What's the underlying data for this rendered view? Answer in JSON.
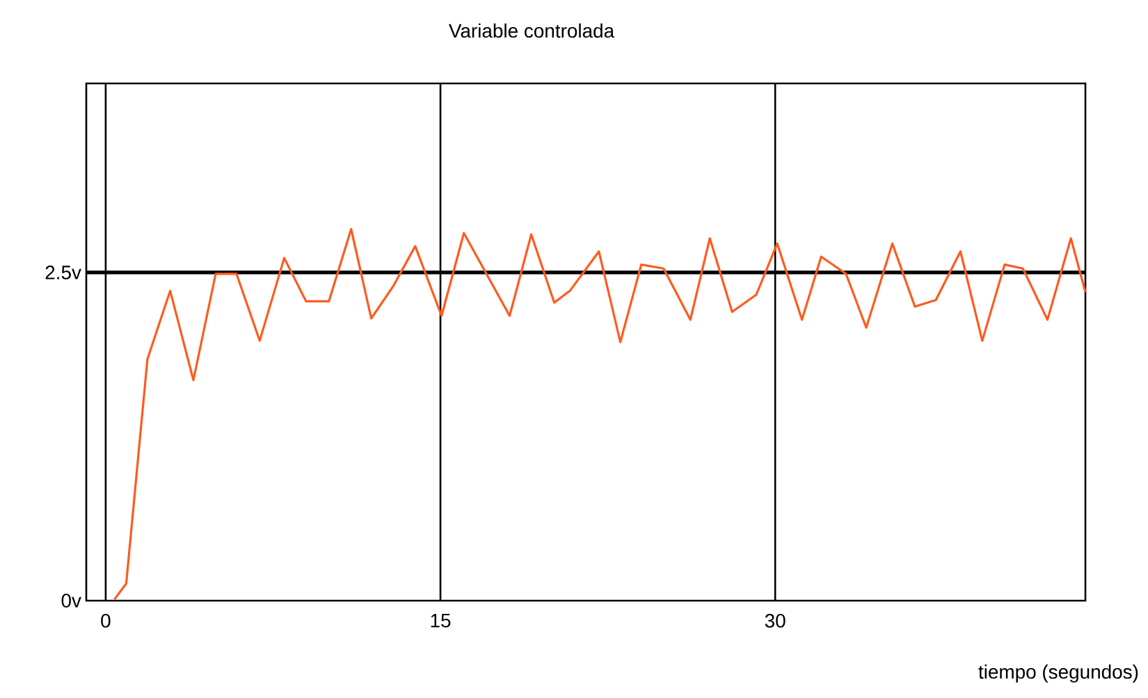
{
  "chart_data": {
    "type": "line",
    "title": "Variable controlada",
    "xlabel": "tiempo (segundos)",
    "x": [
      0.39,
      0.92,
      1.87,
      2.89,
      3.93,
      4.93,
      5.86,
      6.9,
      8.0,
      8.98,
      10.0,
      11.0,
      11.9,
      12.9,
      13.87,
      15.05,
      16.05,
      18.1,
      19.07,
      20.1,
      20.8,
      22.1,
      23.06,
      24.0,
      25.0,
      26.2,
      27.07,
      28.07,
      29.15,
      30.09,
      31.2,
      32.06,
      33.17,
      34.08,
      35.25,
      36.26,
      37.2,
      38.3,
      39.28,
      40.28,
      41.1,
      42.2,
      43.25,
      43.9
    ],
    "series": [
      {
        "color": "#ff5a1e",
        "values": [
          0.01,
          0.13,
          1.84,
          2.36,
          1.68,
          2.49,
          2.49,
          1.98,
          2.61,
          2.28,
          2.28,
          2.83,
          2.15,
          2.4,
          2.7,
          2.17,
          2.8,
          2.17,
          2.79,
          2.27,
          2.36,
          2.66,
          1.97,
          2.56,
          2.53,
          2.14,
          2.76,
          2.2,
          2.33,
          2.72,
          2.14,
          2.62,
          2.49,
          2.08,
          2.72,
          2.24,
          2.29,
          2.66,
          1.98,
          2.56,
          2.53,
          2.14,
          2.76,
          2.35
        ]
      }
    ],
    "xlim": [
      -0.87,
      43.9
    ],
    "ylim": [
      0,
      3.94
    ],
    "xticks": [
      0,
      15,
      30
    ],
    "yticks": [
      {
        "value": 0,
        "label": "0v"
      },
      {
        "value": 2.5,
        "label": "2.5v"
      }
    ],
    "ref_lines": [
      {
        "axis": "y",
        "value": 2.5,
        "color": "#000000"
      }
    ],
    "grid": "x",
    "marker": "none",
    "line_style": "solid"
  }
}
